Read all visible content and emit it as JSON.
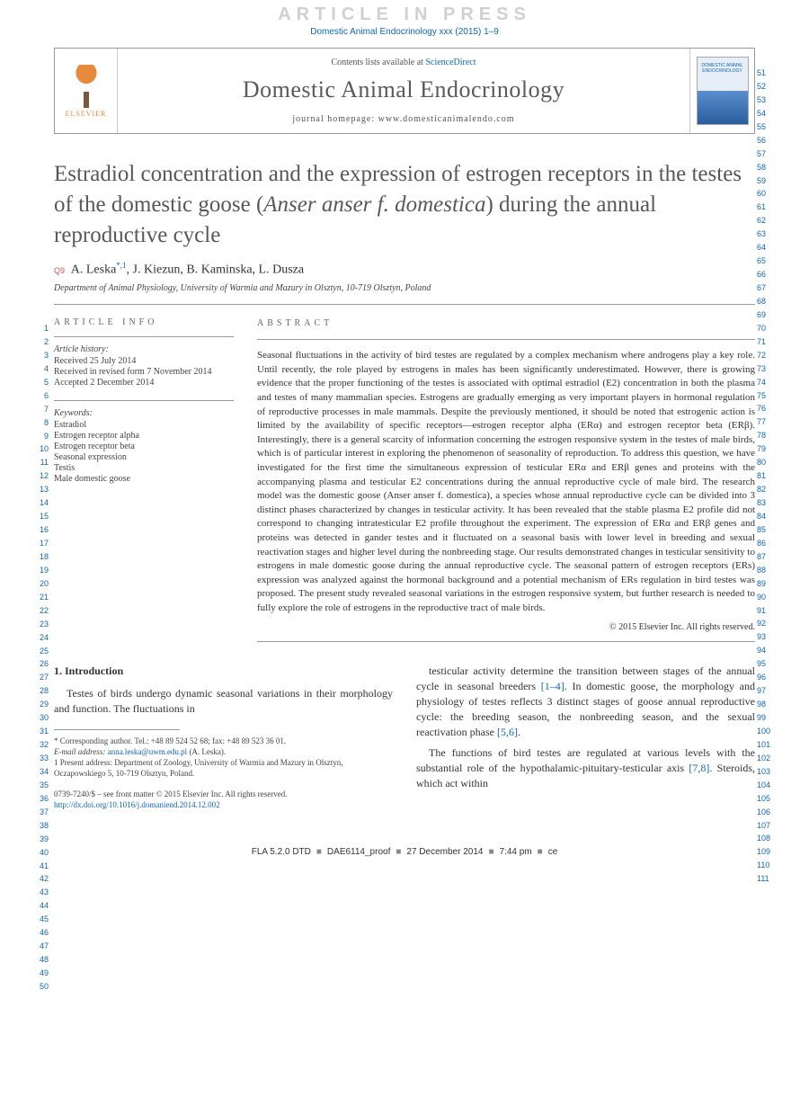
{
  "watermark": "ARTICLE IN PRESS",
  "cite": "Domestic Animal Endocrinology xxx (2015) 1–9",
  "header": {
    "sciencedirect_prefix": "Contents lists available at ",
    "sciencedirect": "ScienceDirect",
    "journal": "Domestic Animal Endocrinology",
    "homepage": "journal homepage: www.domesticanimalendo.com",
    "publisher": "ELSEVIER",
    "cover_text": "DOMESTIC ANIMAL ENDOCRINOLOGY"
  },
  "title_html": "Estradiol concentration and the expression of estrogen receptors in the testes of the domestic goose (<em>Anser anser f. domestica</em>) during the annual reproductive cycle",
  "query": "Q9",
  "authors": "A. Leska",
  "author_sup": "*,1",
  "authors_rest": ", J. Kiezun, B. Kaminska, L. Dusza",
  "affil": "Department of Animal Physiology, University of Warmia and Mazury in Olsztyn, 10-719 Olsztyn, Poland",
  "info": {
    "head": "article info",
    "history_label": "Article history:",
    "received": "Received 25 July 2014",
    "revised": "Received in revised form 7 November 2014",
    "accepted": "Accepted 2 December 2014",
    "kw_label": "Keywords:",
    "kw": [
      "Estradiol",
      "Estrogen receptor alpha",
      "Estrogen receptor beta",
      "Seasonal expression",
      "Testis",
      "Male domestic goose"
    ]
  },
  "abstract": {
    "head": "abstract",
    "text": "Seasonal fluctuations in the activity of bird testes are regulated by a complex mechanism where androgens play a key role. Until recently, the role played by estrogens in males has been significantly underestimated. However, there is growing evidence that the proper functioning of the testes is associated with optimal estradiol (E2) concentration in both the plasma and testes of many mammalian species. Estrogens are gradually emerging as very important players in hormonal regulation of reproductive processes in male mammals. Despite the previously mentioned, it should be noted that estrogenic action is limited by the availability of specific receptors—estrogen receptor alpha (ERα) and estrogen receptor beta (ERβ). Interestingly, there is a general scarcity of information concerning the estrogen responsive system in the testes of male birds, which is of particular interest in exploring the phenomenon of seasonality of reproduction. To address this question, we have investigated for the first time the simultaneous expression of testicular ERα and ERβ genes and proteins with the accompanying plasma and testicular E2 concentrations during the annual reproductive cycle of male bird. The research model was the domestic goose (Anser anser f. domestica), a species whose annual reproductive cycle can be divided into 3 distinct phases characterized by changes in testicular activity. It has been revealed that the stable plasma E2 profile did not correspond to changing intratesticular E2 profile throughout the experiment. The expression of ERα and ERβ genes and proteins was detected in gander testes and it fluctuated on a seasonal basis with lower level in breeding and sexual reactivation stages and higher level during the nonbreeding stage. Our results demonstrated changes in testicular sensitivity to estrogens in male domestic goose during the annual reproductive cycle. The seasonal pattern of estrogen receptors (ERs) expression was analyzed against the hormonal background and a potential mechanism of ERs regulation in bird testes was proposed. The present study revealed seasonal variations in the estrogen responsive system, but further research is needed to fully explore the role of estrogens in the reproductive tract of male birds.",
    "copyright": "© 2015 Elsevier Inc. All rights reserved."
  },
  "body": {
    "sect_num": "1.",
    "sect_title": "Introduction",
    "l1": "Testes of birds undergo dynamic seasonal variations in their morphology and function. The fluctuations in",
    "r1_pre": "testicular activity determine the transition between stages of the annual cycle in seasonal breeders ",
    "r1_ref1": "[1–4]",
    "r1_mid": ". In domestic goose, the morphology and physiology of testes reflects 3 distinct stages of goose annual reproductive cycle: the breeding season, the nonbreeding season, and the sexual reactivation phase ",
    "r1_ref2": "[5,6]",
    "r1_end": ".",
    "r2_pre": "The functions of bird testes are regulated at various levels with the substantial role of the hypothalamic-pituitary-testicular axis ",
    "r2_ref": "[7,8]",
    "r2_end": ". Steroids, which act within"
  },
  "footnotes": {
    "corr": "* Corresponding author. Tel.: +48 89 524 52 68; fax: +48 89 523 36 01.",
    "email_label": "E-mail address: ",
    "email": "anna.leska@uwm.edu.pl",
    "email_suffix": " (A. Leska).",
    "pres": "1  Present address: Department of Zoology, University of Warmia and Mazury in Olsztyn, Oczapowskiego 5, 10-719 Olsztyn, Poland."
  },
  "copy_block": {
    "line1": "0739-7240/$ – see front matter © 2015 Elsevier Inc. All rights reserved.",
    "doi": "http://dx.doi.org/10.1016/j.domaniend.2014.12.002"
  },
  "footer": {
    "fla": "FLA 5.2.0 DTD",
    "proof": "DAE6114_proof",
    "date": "27 December 2014",
    "time": "7:44 pm",
    "ce": "ce"
  },
  "ln_left": {
    "start": 1,
    "end": 50
  },
  "ln_right": {
    "start": 51,
    "end": 111
  },
  "colors": {
    "link": "#1067b5",
    "query": "#d9534f",
    "watermark": "#d0d0d0"
  }
}
